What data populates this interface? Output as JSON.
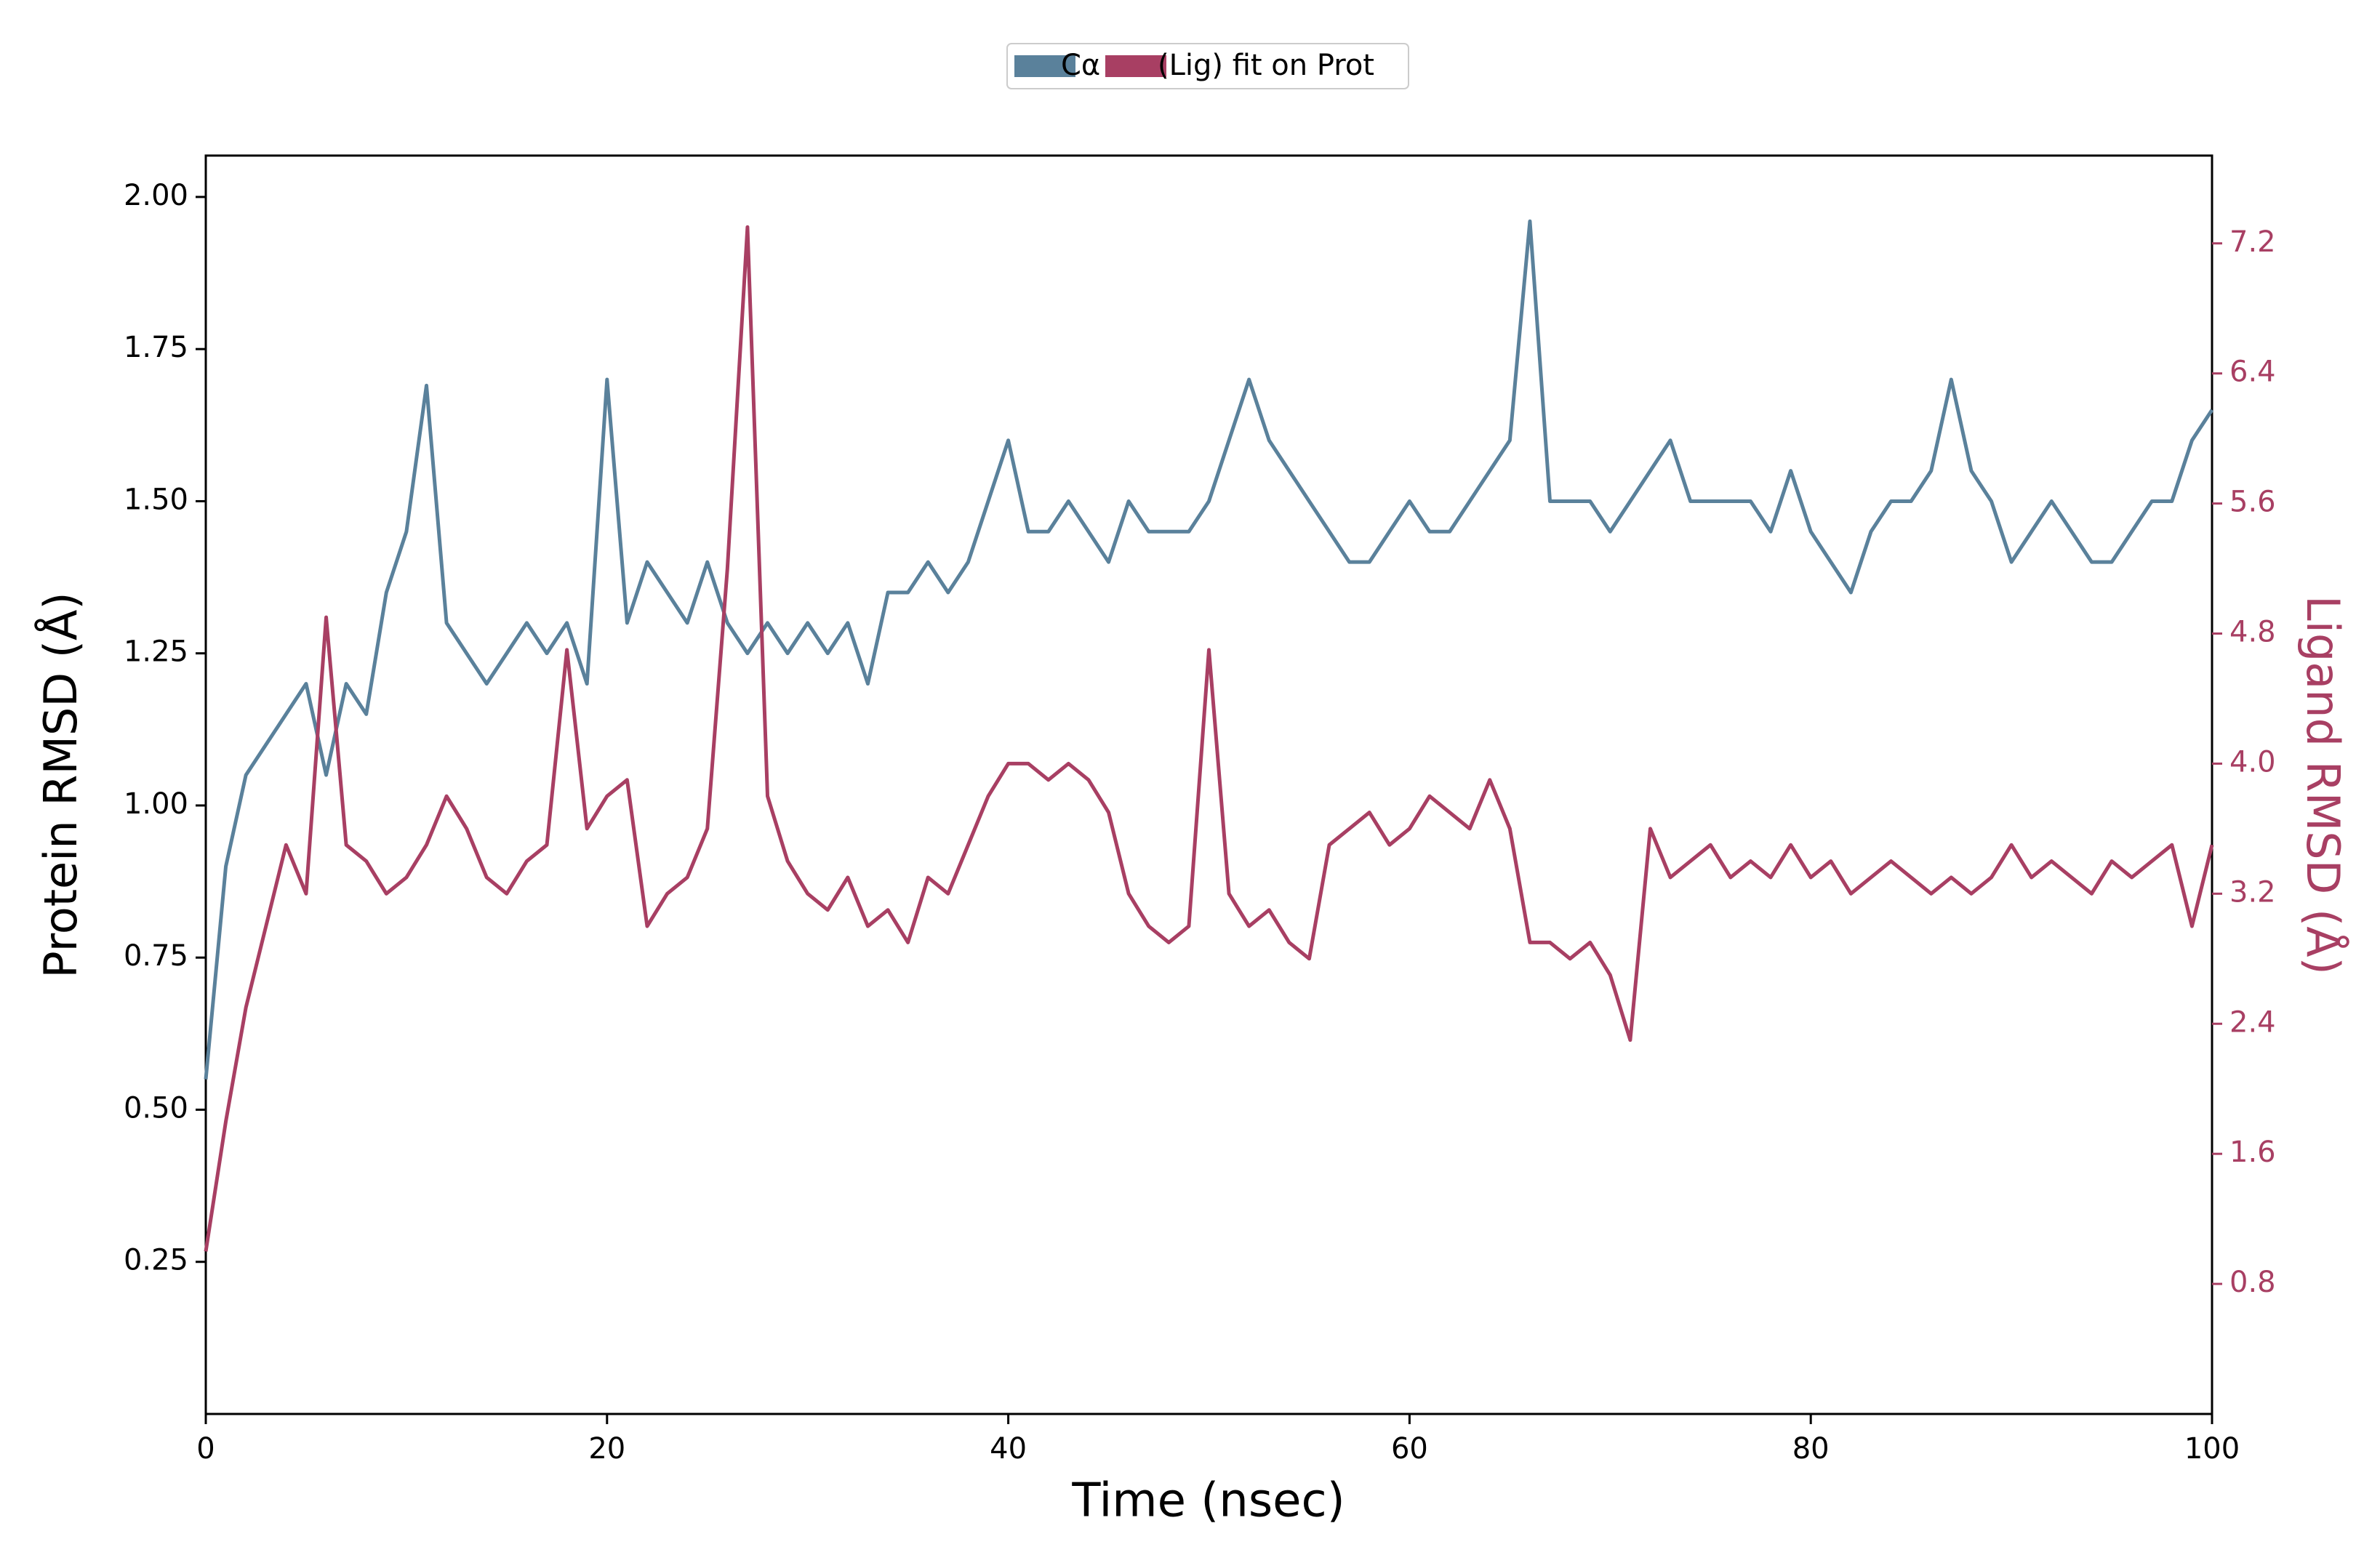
{
  "chart_data": {
    "type": "line",
    "x_label": "Time (nsec)",
    "y_label": "Protein RMSD (Å)",
    "y2_label": "Ligand RMSD (Å)",
    "x": [
      0,
      1,
      2,
      3,
      4,
      5,
      6,
      7,
      8,
      9,
      10,
      11,
      12,
      13,
      14,
      15,
      16,
      17,
      18,
      19,
      20,
      21,
      22,
      23,
      24,
      25,
      26,
      27,
      28,
      29,
      30,
      31,
      32,
      33,
      34,
      35,
      36,
      37,
      38,
      39,
      40,
      41,
      42,
      43,
      44,
      45,
      46,
      47,
      48,
      49,
      50,
      51,
      52,
      53,
      54,
      55,
      56,
      57,
      58,
      59,
      60,
      61,
      62,
      63,
      64,
      65,
      66,
      67,
      68,
      69,
      70,
      71,
      72,
      73,
      74,
      75,
      76,
      77,
      78,
      79,
      80,
      81,
      82,
      83,
      84,
      85,
      86,
      87,
      88,
      89,
      90,
      91,
      92,
      93,
      94,
      95,
      96,
      97,
      98,
      99,
      100
    ],
    "series": [
      {
        "name": "Cα",
        "color": "#5a819b",
        "axis": "y",
        "values": [
          0.55,
          0.9,
          1.05,
          1.1,
          1.15,
          1.2,
          1.05,
          1.2,
          1.15,
          1.35,
          1.45,
          1.69,
          1.3,
          1.25,
          1.2,
          1.25,
          1.3,
          1.25,
          1.3,
          1.2,
          1.7,
          1.3,
          1.4,
          1.35,
          1.3,
          1.4,
          1.3,
          1.25,
          1.3,
          1.25,
          1.3,
          1.25,
          1.3,
          1.2,
          1.35,
          1.35,
          1.4,
          1.35,
          1.4,
          1.5,
          1.6,
          1.45,
          1.45,
          1.5,
          1.45,
          1.4,
          1.5,
          1.45,
          1.45,
          1.45,
          1.5,
          1.6,
          1.7,
          1.6,
          1.55,
          1.5,
          1.45,
          1.4,
          1.4,
          1.45,
          1.5,
          1.45,
          1.45,
          1.5,
          1.55,
          1.6,
          1.96,
          1.5,
          1.5,
          1.5,
          1.45,
          1.5,
          1.55,
          1.6,
          1.5,
          1.5,
          1.5,
          1.5,
          1.45,
          1.55,
          1.45,
          1.4,
          1.35,
          1.45,
          1.5,
          1.5,
          1.55,
          1.7,
          1.55,
          1.5,
          1.4,
          1.45,
          1.5,
          1.45,
          1.4,
          1.4,
          1.45,
          1.5,
          1.5,
          1.6,
          1.65
        ]
      },
      {
        "name": "(Lig) fit on Prot",
        "color": "#a83f63",
        "axis": "y2",
        "values": [
          1.0,
          1.8,
          2.5,
          3.0,
          3.5,
          3.2,
          4.9,
          3.5,
          3.4,
          3.2,
          3.3,
          3.5,
          3.8,
          3.6,
          3.3,
          3.2,
          3.4,
          3.5,
          4.7,
          3.6,
          3.8,
          3.9,
          3.0,
          3.2,
          3.3,
          3.6,
          5.2,
          7.3,
          3.8,
          3.4,
          3.2,
          3.1,
          3.3,
          3.0,
          3.1,
          2.9,
          3.3,
          3.2,
          3.5,
          3.8,
          4.0,
          4.0,
          3.9,
          4.0,
          3.9,
          3.7,
          3.2,
          3.0,
          2.9,
          3.0,
          4.7,
          3.2,
          3.0,
          3.1,
          2.9,
          2.8,
          3.5,
          3.6,
          3.7,
          3.5,
          3.6,
          3.8,
          3.7,
          3.6,
          3.9,
          3.6,
          2.9,
          2.9,
          2.8,
          2.9,
          2.7,
          2.3,
          3.6,
          3.3,
          3.4,
          3.5,
          3.3,
          3.4,
          3.3,
          3.5,
          3.3,
          3.4,
          3.2,
          3.3,
          3.4,
          3.3,
          3.2,
          3.3,
          3.2,
          3.3,
          3.5,
          3.3,
          3.4,
          3.3,
          3.2,
          3.4,
          3.3,
          3.4,
          3.5,
          3.0,
          3.5
        ]
      }
    ],
    "xlim": [
      0,
      100
    ],
    "xticks": [
      0,
      20,
      40,
      60,
      80,
      100
    ],
    "ylim": [
      0,
      2.068
    ],
    "yticks": [
      0.25,
      {
        "value": 0.5,
        "label": "0.50"
      },
      0.75,
      {
        "value": 1,
        "label": "1.00"
      },
      1.25,
      {
        "value": 1.5,
        "label": "1.50"
      },
      1.75,
      {
        "value": 2,
        "label": "2.00"
      }
    ],
    "y2lim": [
      0,
      7.74
    ],
    "y2ticks": [
      0.8,
      1.6,
      2.4,
      3.2,
      {
        "value": 4,
        "label": "4.0"
      },
      4.8,
      5.6,
      6.4,
      7.2
    ],
    "legend": "top"
  }
}
